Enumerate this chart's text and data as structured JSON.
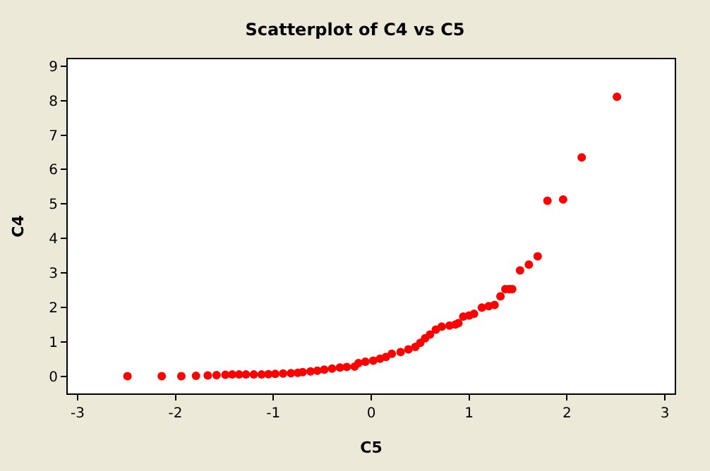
{
  "chart_data": {
    "type": "scatter",
    "title": "Scatterplot of C4 vs C5",
    "xlabel": "C5",
    "ylabel": "C4",
    "x": [
      -2.49,
      -2.14,
      -1.94,
      -1.79,
      -1.67,
      -1.58,
      -1.49,
      -1.42,
      -1.35,
      -1.28,
      -1.2,
      -1.12,
      -1.05,
      -0.98,
      -0.9,
      -0.82,
      -0.75,
      -0.7,
      -0.62,
      -0.55,
      -0.48,
      -0.4,
      -0.32,
      -0.25,
      -0.17,
      -0.13,
      -0.06,
      0.02,
      0.09,
      0.15,
      0.21,
      0.3,
      0.38,
      0.45,
      0.5,
      0.55,
      0.6,
      0.66,
      0.72,
      0.8,
      0.86,
      0.89,
      0.94,
      1.0,
      1.05,
      1.13,
      1.2,
      1.26,
      1.32,
      1.37,
      1.41,
      1.44,
      1.52,
      1.61,
      1.7,
      1.8,
      1.96,
      2.15,
      2.51
    ],
    "values": [
      0.0,
      0.0,
      0.0,
      0.01,
      0.02,
      0.03,
      0.04,
      0.05,
      0.05,
      0.05,
      0.05,
      0.05,
      0.06,
      0.07,
      0.08,
      0.09,
      0.1,
      0.12,
      0.14,
      0.16,
      0.19,
      0.22,
      0.25,
      0.27,
      0.28,
      0.38,
      0.42,
      0.45,
      0.51,
      0.56,
      0.65,
      0.7,
      0.78,
      0.85,
      0.97,
      1.1,
      1.21,
      1.35,
      1.44,
      1.47,
      1.5,
      1.54,
      1.73,
      1.76,
      1.81,
      1.99,
      2.03,
      2.07,
      2.32,
      2.53,
      2.53,
      2.53,
      3.07,
      3.24,
      3.48,
      5.09,
      5.13,
      6.35,
      8.11
    ],
    "color": "#ff0000",
    "marker": "circle",
    "xlim": [
      -3.1,
      3.1
    ],
    "xticks": [
      -3,
      -2,
      -1,
      0,
      1,
      2,
      3
    ],
    "ylim": [
      -0.5,
      9.2
    ],
    "yticks": [
      0,
      1,
      2,
      3,
      4,
      5,
      6,
      7,
      8,
      9
    ],
    "legend": false
  }
}
